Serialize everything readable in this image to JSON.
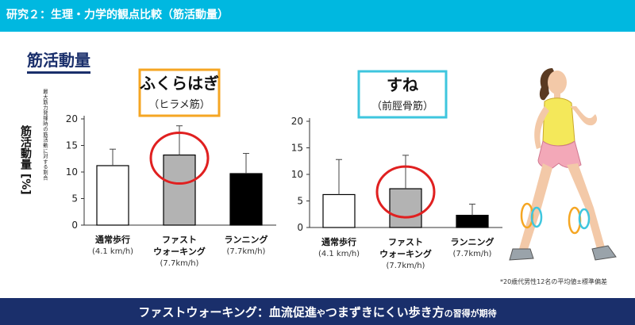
{
  "header": {
    "title": "研究２：生理・力学的観点比較（筋活動量）"
  },
  "section_title": "筋活動量",
  "y_axis": {
    "label": "筋活動量 [%]",
    "note": "最大筋力発揮時の筋活動に対する割合"
  },
  "chart_data": [
    {
      "type": "bar",
      "title": "ふくらはぎ",
      "subtitle": "（ヒラメ筋）",
      "title_border_color": "#f5a623",
      "categories": [
        "通常歩行",
        "ファストウォーキング",
        "ランニング"
      ],
      "category_lines": [
        [
          "通常歩行"
        ],
        [
          "ファスト",
          "ウォーキング"
        ],
        [
          "ランニング"
        ]
      ],
      "speeds": [
        "(4.1 km/h)",
        "(7.7km/h)",
        "(7.7km/h)"
      ],
      "values": [
        11.2,
        13.2,
        9.7
      ],
      "errors": [
        3.1,
        5.5,
        3.8
      ],
      "bar_colors": [
        "#ffffff",
        "#b3b3b3",
        "#000000"
      ],
      "highlight_index": 1,
      "ylim": [
        0,
        20
      ],
      "yticks": [
        0,
        5,
        10,
        15,
        20
      ]
    },
    {
      "type": "bar",
      "title": "すね",
      "subtitle": "（前脛骨筋）",
      "title_border_color": "#3ec6de",
      "categories": [
        "通常歩行",
        "ファストウォーキング",
        "ランニング"
      ],
      "category_lines": [
        [
          "通常歩行"
        ],
        [
          "ファスト",
          "ウォーキング"
        ],
        [
          "ランニング"
        ]
      ],
      "speeds": [
        "(4.1 km/h)",
        "(7.7km/h)",
        "(7.7km/h)"
      ],
      "values": [
        6.2,
        7.3,
        2.3
      ],
      "errors": [
        6.6,
        6.3,
        2.1
      ],
      "bar_colors": [
        "#ffffff",
        "#b3b3b3",
        "#000000"
      ],
      "highlight_index": 1,
      "ylim": [
        0,
        20
      ],
      "yticks": [
        0,
        5,
        10,
        15,
        20
      ]
    }
  ],
  "footnote": "*20歳代男性12名の平均値±標準偏差",
  "footer": {
    "main": "ファストウォーキング：血流促進",
    "mid1": "や",
    "main2": "つまずきにくい歩き方",
    "mid2": "の習得が期待"
  },
  "colors": {
    "header": "#00b8e0",
    "footer": "#1a2f6b",
    "highlight": "#e02020",
    "orange": "#f5a623",
    "cyan": "#3ec6de"
  }
}
